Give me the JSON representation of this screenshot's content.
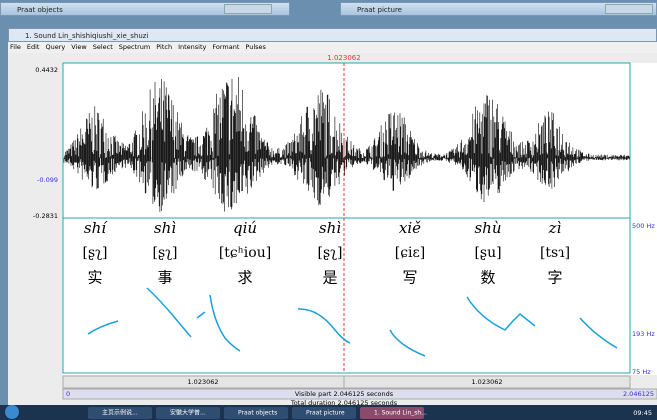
{
  "windows": {
    "objects_title": "Praat objects",
    "picture_title": "Praat picture"
  },
  "sound_window": {
    "title": "1. Sound Lin_shishiqiushi_xie_shuzi",
    "menu": [
      "File",
      "Edit",
      "Query",
      "View",
      "Select",
      "Spectrum",
      "Pitch",
      "Intensity",
      "Formant",
      "Pulses"
    ],
    "cursor_time": "1.023062",
    "amplitude_labels": [
      "0.4432",
      "-0.099",
      "-0.2831"
    ],
    "syllables": [
      {
        "pinyin": "shí",
        "ipa": "[ʂʅ]",
        "hanzi": "实"
      },
      {
        "pinyin": "shì",
        "ipa": "[ʂʅ]",
        "hanzi": "事"
      },
      {
        "pinyin": "qiú",
        "ipa": "[tɕʰiou]",
        "hanzi": "求"
      },
      {
        "pinyin": "shì",
        "ipa": "[ʂʅ]",
        "hanzi": "是"
      },
      {
        "pinyin": "xiě",
        "ipa": "[ɕiɛ]",
        "hanzi": "写"
      },
      {
        "pinyin": "shù",
        "ipa": "[ʂu]",
        "hanzi": "数"
      },
      {
        "pinyin": "zì",
        "ipa": "[tsɿ]",
        "hanzi": "字"
      }
    ],
    "pitch_labels": [
      "500 Hz",
      "193 Hz",
      "75 Hz"
    ],
    "selection_left": "1.023062",
    "selection_right": "1.023062",
    "visible_start": "0",
    "visible_part": "Visible part 2.046125 seconds",
    "visible_end": "2.046125",
    "total_duration": "Total duration 2.046125 seconds"
  },
  "taskbar": {
    "items": [
      "主页示例说...",
      "安徽大学普...",
      "Praat objects",
      "Praat picture",
      "1. Sound Lin_sh..."
    ],
    "clock": "09:45"
  }
}
